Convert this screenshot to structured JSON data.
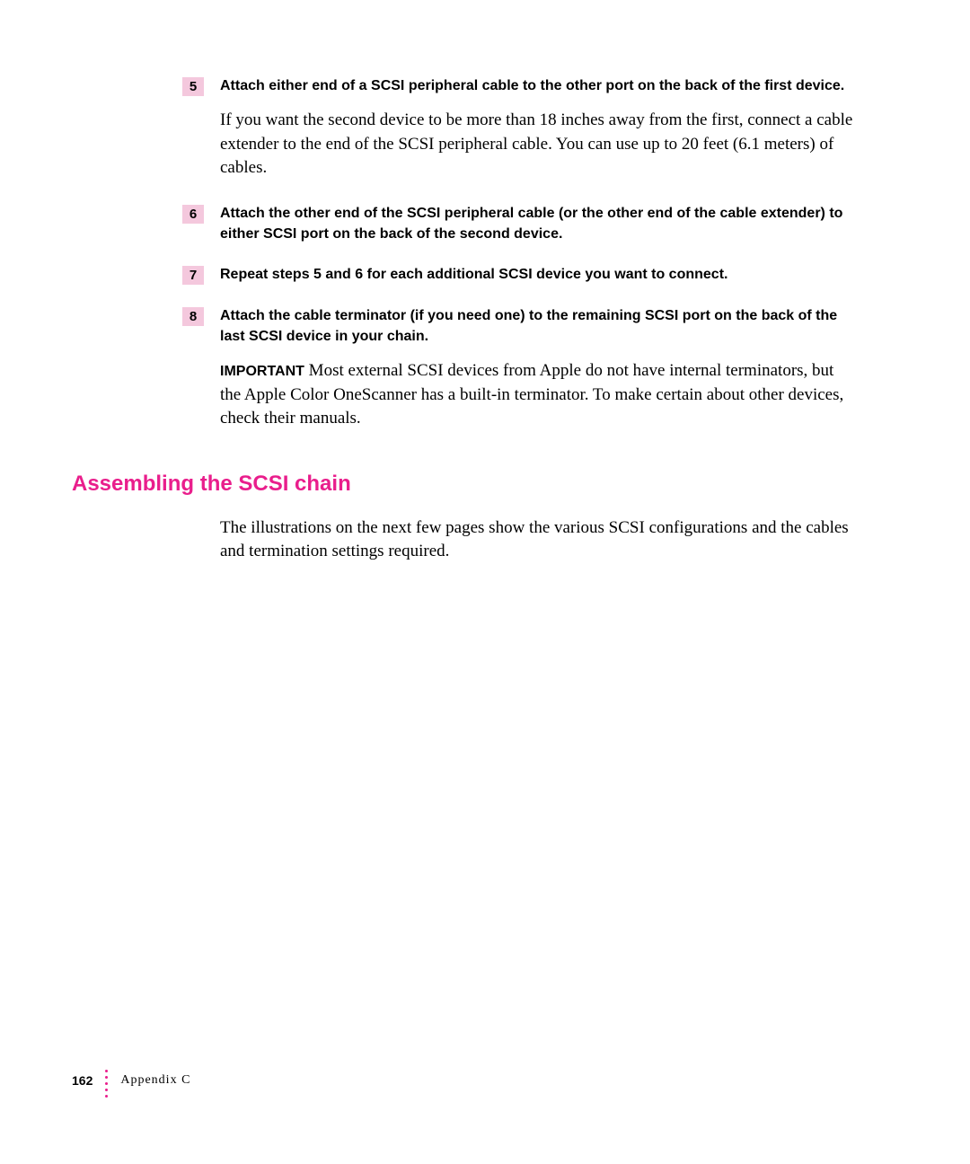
{
  "steps": [
    {
      "number": "5",
      "title": "Attach either end of a SCSI peripheral cable to the other port on the back of the first device.",
      "body": "If you want the second device to be more than 18 inches away from the first, connect a cable extender to the end of the SCSI peripheral cable. You can use up to 20 feet (6.1 meters) of cables."
    },
    {
      "number": "6",
      "title": "Attach the other end of the SCSI peripheral cable (or the other end of the cable extender) to either SCSI port on the back of the second device."
    },
    {
      "number": "7",
      "title": "Repeat steps 5 and 6 for each additional SCSI device you want to connect."
    },
    {
      "number": "8",
      "title": "Attach the cable terminator (if you need one) to the remaining SCSI port on the back of the last SCSI device in your chain."
    }
  ],
  "important": {
    "label": "IMPORTANT",
    "text": "Most external SCSI devices from Apple do not have internal terminators, but the Apple Color OneScanner has a built-in terminator. To make certain about other devices, check their manuals."
  },
  "section": {
    "heading": "Assembling the SCSI chain",
    "body": "The illustrations on the next few pages show the various SCSI configurations and the cables and termination settings required."
  },
  "footer": {
    "page_number": "162",
    "appendix": "Appendix C"
  }
}
